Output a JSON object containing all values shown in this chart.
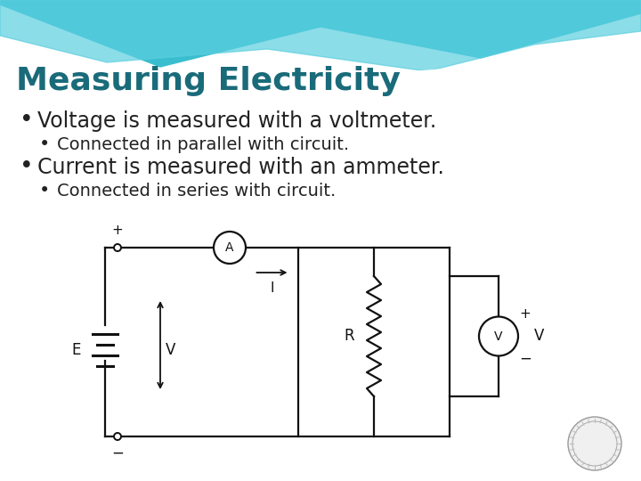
{
  "title": "Measuring Electricity",
  "title_color": "#1a6b7a",
  "title_fontsize": 26,
  "bg_color": "#ffffff",
  "header_teal_dark": "#3ab8c8",
  "header_teal_light": "#7dd8e8",
  "header_white": "#ffffff",
  "bullet1": "Voltage is measured with a voltmeter.",
  "sub_bullet1": "Connected in parallel with circuit.",
  "bullet2": "Current is measured with an ammeter.",
  "sub_bullet2": "Connected in series with circuit.",
  "bullet_color": "#222222",
  "bullet_fontsize": 17,
  "sub_bullet_fontsize": 14,
  "circuit_color": "#111111",
  "fig_w": 7.2,
  "fig_h": 5.4,
  "dpi": 100
}
